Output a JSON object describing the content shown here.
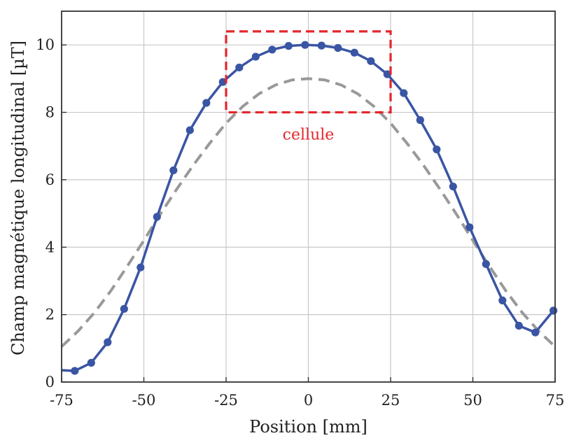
{
  "chart_data": {
    "type": "line",
    "xlabel": "Position [mm]",
    "ylabel": "Champ magnétique longitudinal [µT]",
    "xlim": [
      -75,
      75
    ],
    "ylim": [
      0,
      11
    ],
    "xticks": [
      -75,
      -50,
      -25,
      0,
      25,
      50,
      75
    ],
    "yticks": [
      0,
      2,
      4,
      6,
      8,
      10
    ],
    "grid": true,
    "series": [
      {
        "style": "solid-with-markers",
        "color": "#3a55a4",
        "x": [
          -71.0,
          -66.0,
          -61.0,
          -56.0,
          -51.0,
          -46.0,
          -41.0,
          -36.0,
          -31.0,
          -26.0,
          -21.0,
          -16.0,
          -11.0,
          -6.0,
          -1.0,
          4.0,
          9.0,
          14.0,
          19.0,
          24.0,
          29.0,
          34.0,
          39.0,
          44.0,
          49.0,
          54.0,
          59.0,
          64.0,
          69.0,
          74.5
        ],
        "y": [
          0.33,
          0.57,
          1.18,
          2.17,
          3.4,
          4.9,
          6.28,
          7.47,
          8.28,
          8.9,
          9.33,
          9.65,
          9.86,
          9.97,
          10.0,
          9.98,
          9.91,
          9.77,
          9.52,
          9.13,
          8.57,
          7.77,
          6.9,
          5.8,
          4.59,
          3.5,
          2.42,
          1.67,
          1.47,
          2.12
        ]
      },
      {
        "style": "dashed",
        "color": "#999999",
        "x": [
          -75,
          -70,
          -65,
          -60,
          -55,
          -50,
          -45,
          -40,
          -35,
          -30,
          -25,
          -20,
          -15,
          -10,
          -5,
          0,
          5,
          10,
          15,
          20,
          25,
          30,
          35,
          40,
          45,
          50,
          55,
          60,
          65,
          70,
          75
        ],
        "y": [
          1.05,
          1.51,
          2.06,
          2.71,
          3.44,
          4.2,
          4.98,
          5.72,
          6.43,
          7.08,
          7.68,
          8.17,
          8.55,
          8.81,
          8.96,
          9.0,
          8.96,
          8.81,
          8.55,
          8.17,
          7.68,
          7.08,
          6.43,
          5.72,
          4.98,
          4.2,
          3.44,
          2.71,
          2.06,
          1.51,
          1.05
        ]
      }
    ],
    "annotations": [
      {
        "shape": "dashed-rectangle",
        "color": "#e3262d",
        "x_range": [
          -25,
          25
        ],
        "y_range": [
          8.0,
          10.4
        ],
        "text": "cellule"
      }
    ]
  }
}
